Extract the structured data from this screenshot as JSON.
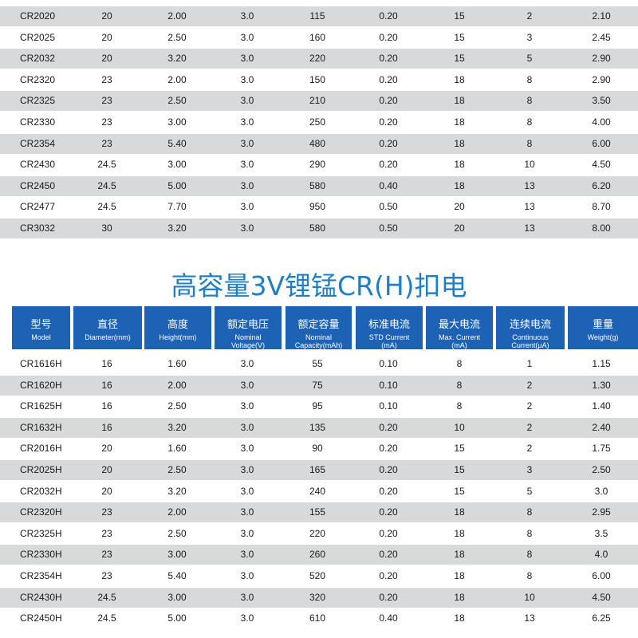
{
  "top_table": {
    "rows": [
      [
        "CR2020",
        "20",
        "2.00",
        "3.0",
        "115",
        "0.20",
        "15",
        "2",
        "2.10"
      ],
      [
        "CR2025",
        "20",
        "2.50",
        "3.0",
        "160",
        "0.20",
        "15",
        "3",
        "2.45"
      ],
      [
        "CR2032",
        "20",
        "3.20",
        "3.0",
        "220",
        "0.20",
        "15",
        "5",
        "2.90"
      ],
      [
        "CR2320",
        "23",
        "2.00",
        "3.0",
        "150",
        "0.20",
        "18",
        "8",
        "2.90"
      ],
      [
        "CR2325",
        "23",
        "2.50",
        "3.0",
        "210",
        "0.20",
        "18",
        "8",
        "3.50"
      ],
      [
        "CR2330",
        "23",
        "3.00",
        "3.0",
        "250",
        "0.20",
        "18",
        "8",
        "4.00"
      ],
      [
        "CR2354",
        "23",
        "5.40",
        "3.0",
        "480",
        "0.20",
        "18",
        "8",
        "6.00"
      ],
      [
        "CR2430",
        "24.5",
        "3.00",
        "3.0",
        "290",
        "0.20",
        "18",
        "10",
        "4.50"
      ],
      [
        "CR2450",
        "24.5",
        "5.00",
        "3.0",
        "580",
        "0.40",
        "18",
        "13",
        "6.20"
      ],
      [
        "CR2477",
        "24.5",
        "7.70",
        "3.0",
        "950",
        "0.50",
        "20",
        "13",
        "8.70"
      ],
      [
        "CR3032",
        "30",
        "3.20",
        "3.0",
        "580",
        "0.50",
        "20",
        "13",
        "8.00"
      ]
    ]
  },
  "title": "高容量3V锂锰CR(H)扣电",
  "bottom_table": {
    "header": [
      {
        "zh": "型号",
        "en": "Model"
      },
      {
        "zh": "直径",
        "en": "Diameter(mm)"
      },
      {
        "zh": "高度",
        "en": "Height(mm)"
      },
      {
        "zh": "额定电压",
        "en": "Nominal Voltage(V)"
      },
      {
        "zh": "额定容量",
        "en": "Nominal Capacity(mAh)"
      },
      {
        "zh": "标准电流",
        "en": "STD Current (mA)"
      },
      {
        "zh": "最大电流",
        "en": "Max. Current (mA)"
      },
      {
        "zh": "连续电流",
        "en": "Continuous Current(μA)"
      },
      {
        "zh": "重量",
        "en": "Weight(g)"
      }
    ],
    "rows": [
      [
        "CR1616H",
        "16",
        "1.60",
        "3.0",
        "55",
        "0.10",
        "8",
        "1",
        "1.15"
      ],
      [
        "CR1620H",
        "16",
        "2.00",
        "3.0",
        "75",
        "0.10",
        "8",
        "2",
        "1.30"
      ],
      [
        "CR1625H",
        "16",
        "2.50",
        "3.0",
        "95",
        "0.10",
        "8",
        "2",
        "1.40"
      ],
      [
        "CR1632H",
        "16",
        "3.20",
        "3.0",
        "135",
        "0.20",
        "10",
        "2",
        "2.40"
      ],
      [
        "CR2016H",
        "20",
        "1.60",
        "3.0",
        "90",
        "0.20",
        "15",
        "2",
        "1.75"
      ],
      [
        "CR2025H",
        "20",
        "2.50",
        "3.0",
        "165",
        "0.20",
        "15",
        "3",
        "2.50"
      ],
      [
        "CR2032H",
        "20",
        "3.20",
        "3.0",
        "240",
        "0.20",
        "15",
        "5",
        "3.0"
      ],
      [
        "CR2320H",
        "23",
        "2.00",
        "3.0",
        "155",
        "0.20",
        "18",
        "8",
        "2.95"
      ],
      [
        "CR2325H",
        "23",
        "2.50",
        "3.0",
        "220",
        "0.20",
        "18",
        "8",
        "3.5"
      ],
      [
        "CR2330H",
        "23",
        "3.00",
        "3.0",
        "260",
        "0.20",
        "18",
        "8",
        "4.0"
      ],
      [
        "CR2354H",
        "23",
        "5.40",
        "3.0",
        "520",
        "0.20",
        "18",
        "8",
        "6.00"
      ],
      [
        "CR2430H",
        "24.5",
        "3.00",
        "3.0",
        "320",
        "0.20",
        "18",
        "10",
        "4.50"
      ],
      [
        "CR2450H",
        "24.5",
        "5.00",
        "3.0",
        "610",
        "0.40",
        "18",
        "13",
        "6.25"
      ]
    ]
  }
}
